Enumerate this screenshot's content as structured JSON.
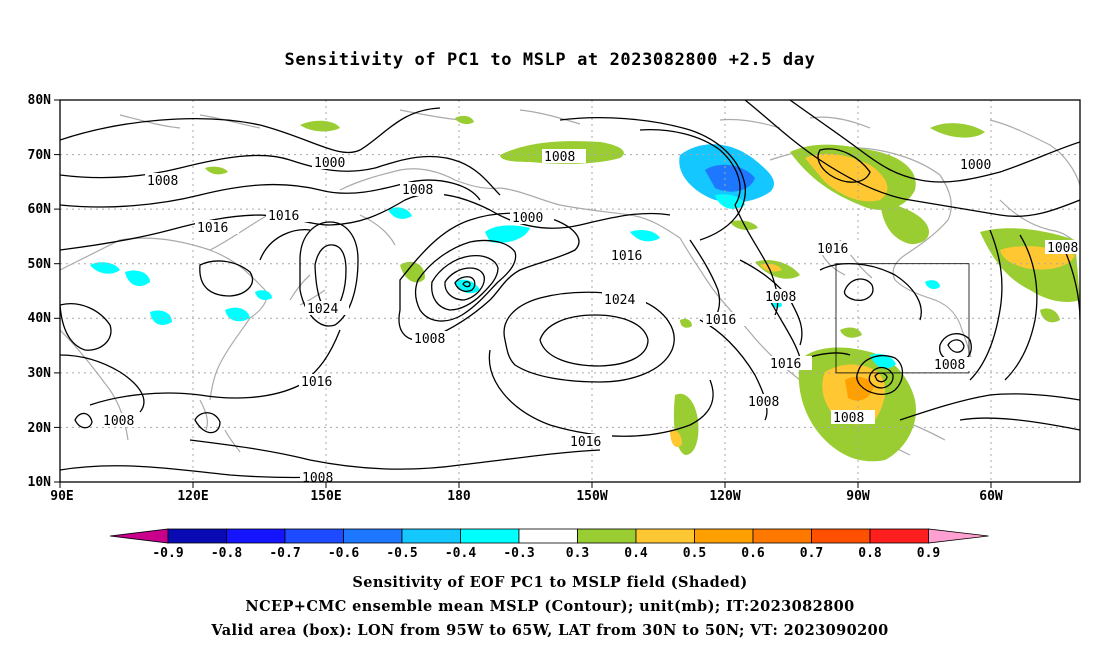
{
  "title": "Sensitivity of PC1 to MSLP at 2023082800 +2.5 day",
  "lat_labels": [
    "80N",
    "70N",
    "60N",
    "50N",
    "40N",
    "30N",
    "20N",
    "10N"
  ],
  "lon_labels": [
    "90E",
    "120E",
    "150E",
    "180",
    "150W",
    "120W",
    "90W",
    "60W"
  ],
  "colorbar": {
    "labels": [
      "-0.9",
      "-0.8",
      "-0.7",
      "-0.6",
      "-0.5",
      "-0.4",
      "-0.3",
      "0.3",
      "0.4",
      "0.5",
      "0.6",
      "0.7",
      "0.8",
      "0.9"
    ],
    "colors": [
      "#c8008c",
      "#0a0ab4",
      "#1414ff",
      "#1e4bff",
      "#1e78ff",
      "#14c8ff",
      "#00ffff",
      "#ffffff",
      "#9acd32",
      "#ffc832",
      "#ffa000",
      "#ff7800",
      "#ff5000",
      "#ff1e1e",
      "#ffa0d2"
    ]
  },
  "contour_labels": [
    "1000",
    "1008",
    "1016",
    "1024"
  ],
  "captions": [
    "Sensitivity of EOF PC1 to MSLP field (Shaded)",
    "NCEP+CMC ensemble mean MSLP (Contour); unit(mb); IT:2023082800",
    "Valid area (box): LON from 95W to 65W, LAT from 30N to 50N; VT: 2023090200"
  ]
}
